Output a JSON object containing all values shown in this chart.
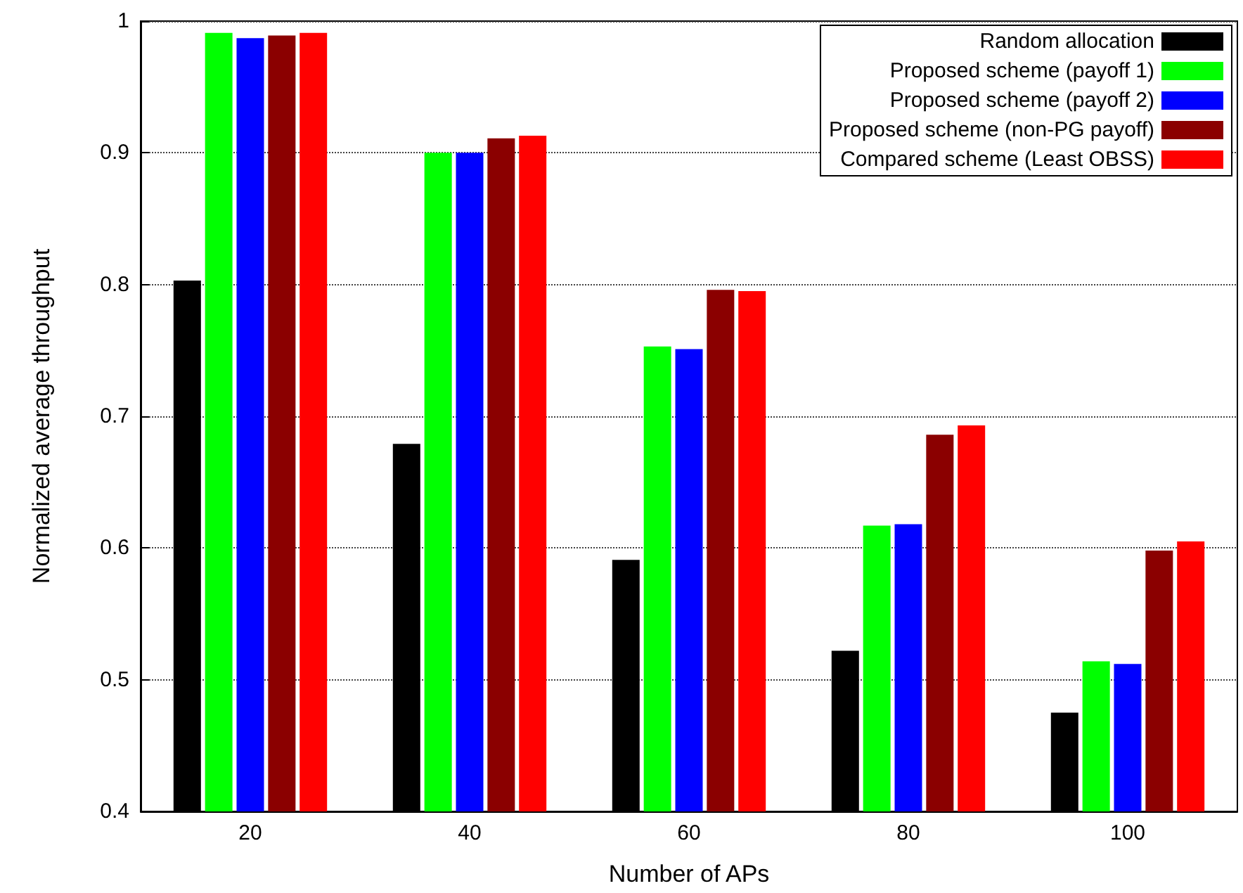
{
  "chart_data": {
    "type": "bar",
    "xlabel": "Number of APs",
    "ylabel": "Normalized average throughput",
    "categories": [
      "20",
      "40",
      "60",
      "80",
      "100"
    ],
    "series": [
      {
        "name": "Random allocation",
        "color": "#000000",
        "values": [
          0.803,
          0.679,
          0.591,
          0.522,
          0.475
        ]
      },
      {
        "name": "Proposed scheme (payoff 1)",
        "color": "#00ff00",
        "values": [
          0.991,
          0.9,
          0.753,
          0.617,
          0.514
        ]
      },
      {
        "name": "Proposed scheme (payoff 2)",
        "color": "#0000ff",
        "values": [
          0.987,
          0.9,
          0.751,
          0.618,
          0.512
        ]
      },
      {
        "name": "Proposed scheme (non-PG payoff)",
        "color": "#8b0000",
        "values": [
          0.989,
          0.911,
          0.796,
          0.686,
          0.598
        ]
      },
      {
        "name": "Compared scheme (Least OBSS)",
        "color": "#ff0000",
        "values": [
          0.991,
          0.913,
          0.795,
          0.693,
          0.605
        ]
      }
    ],
    "ylim": [
      0.4,
      1
    ],
    "yticks": [
      0.4,
      0.5,
      0.6,
      0.7,
      0.8,
      0.9,
      1
    ],
    "grid": "y",
    "legend": "top right"
  }
}
